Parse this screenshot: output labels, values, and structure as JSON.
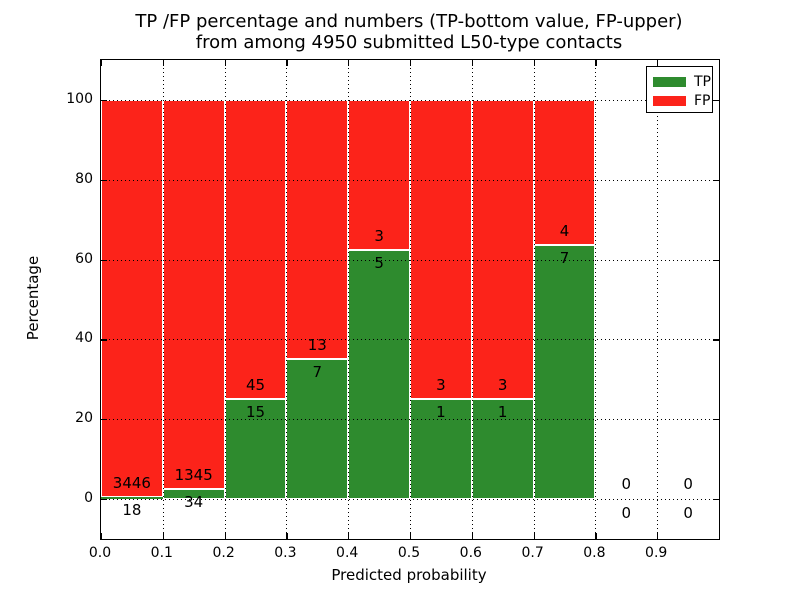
{
  "chart_data": {
    "type": "bar",
    "stacked": true,
    "title_lines": [
      "TP /FP percentage and numbers (TP-bottom value, FP-upper)",
      "from among 4950 submitted L50-type contacts"
    ],
    "xlabel": "Predicted probability",
    "ylabel": "Percentage",
    "xlim": [
      0.0,
      1.0
    ],
    "ylim": [
      -10,
      110
    ],
    "x_tick_labels": [
      "0.0",
      "0.1",
      "0.2",
      "0.3",
      "0.4",
      "0.5",
      "0.6",
      "0.7",
      "0.8",
      "0.9"
    ],
    "y_tick_values": [
      0,
      20,
      40,
      60,
      80,
      100
    ],
    "grid": true,
    "bin_width": 0.1,
    "total_contacts": 4950,
    "bins": [
      {
        "x_start": 0.0,
        "tp": 18,
        "fp": 3446
      },
      {
        "x_start": 0.1,
        "tp": 34,
        "fp": 1345
      },
      {
        "x_start": 0.2,
        "tp": 15,
        "fp": 45
      },
      {
        "x_start": 0.3,
        "tp": 7,
        "fp": 13
      },
      {
        "x_start": 0.4,
        "tp": 5,
        "fp": 3
      },
      {
        "x_start": 0.5,
        "tp": 1,
        "fp": 3
      },
      {
        "x_start": 0.6,
        "tp": 1,
        "fp": 3
      },
      {
        "x_start": 0.7,
        "tp": 7,
        "fp": 4
      },
      {
        "x_start": 0.8,
        "tp": 0,
        "fp": 0
      },
      {
        "x_start": 0.9,
        "tp": 0,
        "fp": 0
      }
    ],
    "legend": {
      "position": "upper right",
      "entries": [
        {
          "label": "TP",
          "color": "#2e8b2e"
        },
        {
          "label": "FP",
          "color": "#fc231a"
        }
      ]
    },
    "colors": {
      "tp": "#2e8b2e",
      "fp": "#fc231a",
      "bar_edge": "#ffffff",
      "grid": "#000000",
      "axes": "#000000",
      "background": "#ffffff"
    }
  }
}
